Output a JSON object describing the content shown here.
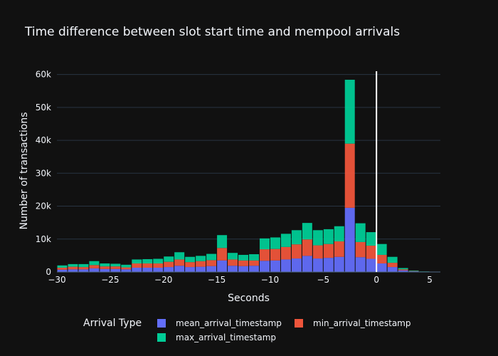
{
  "chart_data": {
    "type": "bar",
    "stacked": true,
    "title": "Time difference between slot start time and mempool arrivals",
    "xlabel": "Seconds",
    "ylabel": "Number of transactions",
    "xlim": [
      -30,
      6
    ],
    "ylim": [
      0,
      61000
    ],
    "bin_width": 1,
    "vline_x": 0,
    "x_ticks": [
      -30,
      -25,
      -20,
      -15,
      -10,
      -5,
      0,
      5
    ],
    "x_tick_labels": [
      "−30",
      "−25",
      "−20",
      "−15",
      "−10",
      "−5",
      "0",
      "5"
    ],
    "y_ticks": [
      0,
      10000,
      20000,
      30000,
      40000,
      50000,
      60000
    ],
    "y_tick_labels": [
      "0",
      "10k",
      "20k",
      "30k",
      "40k",
      "50k",
      "60k"
    ],
    "legend": {
      "title": "Arrival Type",
      "position": "bottom"
    },
    "bin_starts": [
      -30,
      -29,
      -28,
      -27,
      -26,
      -25,
      -24,
      -23,
      -22,
      -21,
      -20,
      -19,
      -18,
      -17,
      -16,
      -15,
      -14,
      -13,
      -12,
      -11,
      -10,
      -9,
      -8,
      -7,
      -6,
      -5,
      -4,
      -3,
      -2,
      -1,
      0,
      1,
      2,
      3,
      4,
      5
    ],
    "series": [
      {
        "name": "mean_arrival_timestamp",
        "color": "#636efa",
        "values": [
          700,
          800,
          800,
          1100,
          900,
          900,
          800,
          1300,
          1300,
          1300,
          1500,
          1900,
          1500,
          1600,
          1800,
          3500,
          1900,
          1800,
          1900,
          3400,
          3500,
          3800,
          4100,
          4900,
          4100,
          4300,
          4600,
          19500,
          4500,
          4000,
          2600,
          1500,
          500,
          200,
          80,
          50
        ]
      },
      {
        "name": "min_arrival_timestamp",
        "color": "#ef553b",
        "values": [
          600,
          800,
          700,
          1000,
          800,
          800,
          600,
          1300,
          1300,
          1300,
          1600,
          1900,
          1500,
          1700,
          1800,
          3800,
          1900,
          1700,
          1600,
          3500,
          3500,
          3800,
          4300,
          5000,
          4000,
          4200,
          4700,
          19500,
          4600,
          4000,
          2600,
          1300,
          300,
          100,
          40,
          30
        ]
      },
      {
        "name": "max_arrival_timestamp",
        "color": "#00cc96",
        "values": [
          700,
          800,
          900,
          1200,
          900,
          800,
          800,
          1200,
          1300,
          1400,
          1600,
          2200,
          1600,
          1600,
          1900,
          3900,
          2000,
          1700,
          1900,
          3300,
          3500,
          4000,
          4300,
          5000,
          4600,
          4500,
          4600,
          19400,
          5700,
          4100,
          3300,
          1800,
          400,
          150,
          50,
          30
        ]
      }
    ]
  }
}
